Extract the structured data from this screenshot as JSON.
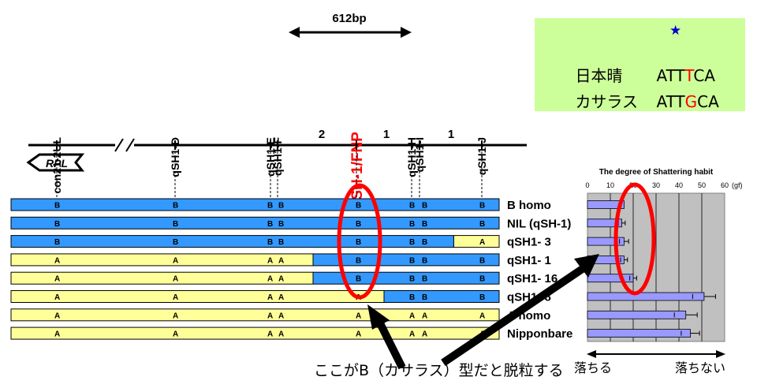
{
  "bp_label": "612bp",
  "markers": [
    {
      "name": "con21-2UL",
      "color": "#000000"
    },
    {
      "name": "qSH1-D",
      "color": "#000000"
    },
    {
      "name": "qSH1-E",
      "color": "#000000"
    },
    {
      "name": "qSH1-F",
      "color": "#000000"
    },
    {
      "name": "qSH-1/FNP",
      "color": "#ff0000"
    },
    {
      "name": "qSH1-H",
      "color": "#000000"
    },
    {
      "name": "qSH1-I",
      "color": "#000000"
    },
    {
      "name": "qSH1-J",
      "color": "#000000"
    }
  ],
  "recomb_counts": [
    "2",
    "1",
    "1"
  ],
  "gene_label": "RPL",
  "sequence": {
    "rows": [
      {
        "name": "日本晴",
        "prefix": "ATT",
        "snp": "T",
        "suffix": "CA"
      },
      {
        "name": "カサラス",
        "prefix": "ATT",
        "snp": "G",
        "suffix": "CA"
      }
    ],
    "snp_color": "#ff0000",
    "star_color": "#0000cc"
  },
  "lines": [
    {
      "name": "B homo",
      "genotypes": [
        "B",
        "B",
        "B",
        "B",
        "B",
        "B",
        "B",
        "B"
      ],
      "shattering": 16,
      "error": 0
    },
    {
      "name": "NIL (qSH-1)",
      "genotypes": [
        "B",
        "B",
        "B",
        "B",
        "B",
        "B",
        "B",
        "B"
      ],
      "shattering": 15,
      "error": 1.5
    },
    {
      "name": "qSH1- 3",
      "genotypes": [
        "B",
        "B",
        "B",
        "B",
        "B",
        "B",
        "B",
        "A"
      ],
      "shattering": 16,
      "error": 2
    },
    {
      "name": "qSH1- 1",
      "genotypes": [
        "A",
        "A",
        "A",
        "A",
        "B",
        "B",
        "B",
        "B"
      ],
      "shattering": 16,
      "error": 1.5
    },
    {
      "name": "qSH1- 16",
      "genotypes": [
        "A",
        "A",
        "A",
        "A",
        "B",
        "B",
        "B",
        "B"
      ],
      "shattering": 20,
      "error": 1.5
    },
    {
      "name": "qSH1- 8",
      "genotypes": [
        "A",
        "A",
        "A",
        "A",
        "A",
        "B",
        "B",
        "B"
      ],
      "shattering": 51,
      "error": 5
    },
    {
      "name": "A homo",
      "genotypes": [
        "A",
        "A",
        "A",
        "A",
        "A",
        "A",
        "A",
        "A"
      ],
      "shattering": 43,
      "error": 5
    },
    {
      "name": "Nipponbare",
      "genotypes": [
        "A",
        "A",
        "A",
        "A",
        "A",
        "A",
        "A",
        "A"
      ],
      "shattering": 45,
      "error": 4
    }
  ],
  "colors": {
    "B": "#3399ff",
    "A": "#ffff99",
    "ring": "#ff0000",
    "bar": "#9999ff",
    "plot_bg": "#c0c0c0"
  },
  "chart_data": {
    "type": "bar",
    "orientation": "horizontal",
    "title": "The degree of Shattering habit",
    "unit": "(gf)",
    "xlim": [
      0,
      60
    ],
    "ticks": [
      "0",
      "10",
      "20",
      "30",
      "40",
      "50",
      "60"
    ],
    "categories": [
      "B homo",
      "NIL (qSH-1)",
      "qSH1- 3",
      "qSH1- 1",
      "qSH1- 16",
      "qSH1- 8",
      "A homo",
      "Nipponbare"
    ],
    "values": [
      16,
      15,
      16,
      16,
      20,
      51,
      43,
      45
    ],
    "errors": [
      0,
      1.5,
      2,
      1.5,
      1.5,
      5,
      5,
      4
    ],
    "grid": true
  },
  "axis_left_label": "落ちる",
  "axis_right_label": "落ちない",
  "note": "ここがB（カサラス）型だと脱粒する"
}
